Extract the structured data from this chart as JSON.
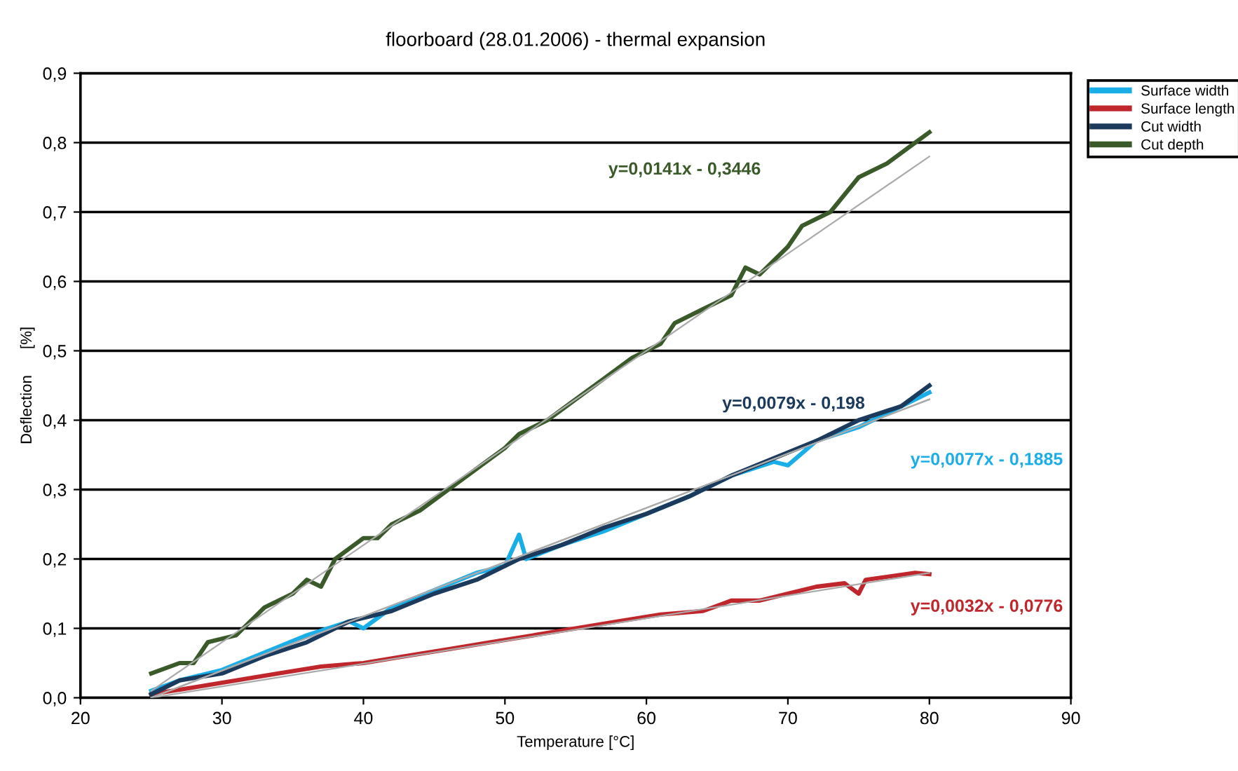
{
  "chart_data": {
    "type": "line",
    "title": "floorboard (28.01.2006) - thermal expansion",
    "xlabel": "Temperature [°C]",
    "ylabel": "Deflection      [%]",
    "series": [
      {
        "name": "Surface width",
        "color": "#1aaee8",
        "x": [
          25,
          27,
          30,
          33,
          36,
          39,
          40,
          42,
          45,
          48,
          50,
          51,
          51.5,
          54,
          57,
          60,
          63,
          66,
          69,
          70,
          72,
          75,
          78,
          80
        ],
        "values": [
          0.01,
          0.025,
          0.04,
          0.065,
          0.09,
          0.11,
          0.1,
          0.13,
          0.155,
          0.18,
          0.19,
          0.235,
          0.2,
          0.22,
          0.24,
          0.265,
          0.29,
          0.32,
          0.34,
          0.335,
          0.37,
          0.39,
          0.42,
          0.44
        ]
      },
      {
        "name": "Surface length",
        "color": "#c0272d",
        "x": [
          25,
          28,
          31,
          34,
          37,
          40,
          43,
          46,
          49,
          52,
          55,
          58,
          61,
          64,
          66,
          68,
          70,
          72,
          74,
          75,
          75.5,
          79,
          80
        ],
        "values": [
          0.005,
          0.015,
          0.025,
          0.035,
          0.045,
          0.05,
          0.06,
          0.07,
          0.08,
          0.09,
          0.1,
          0.11,
          0.12,
          0.125,
          0.14,
          0.14,
          0.15,
          0.16,
          0.165,
          0.15,
          0.17,
          0.18,
          0.178
        ]
      },
      {
        "name": "Cut width",
        "color": "#1b3a5c",
        "x": [
          25,
          27,
          30,
          33,
          36,
          39,
          42,
          45,
          48,
          51,
          54,
          57,
          60,
          63,
          66,
          69,
          72,
          75,
          78,
          80
        ],
        "values": [
          0.005,
          0.025,
          0.035,
          0.06,
          0.08,
          0.11,
          0.125,
          0.15,
          0.17,
          0.2,
          0.22,
          0.245,
          0.265,
          0.29,
          0.32,
          0.345,
          0.37,
          0.4,
          0.42,
          0.45
        ]
      },
      {
        "name": "Cut depth",
        "color": "#3a5a2a",
        "x": [
          25,
          27,
          28,
          29,
          31,
          32,
          33,
          35,
          36,
          37,
          38,
          40,
          41,
          42,
          44,
          46,
          48,
          50,
          51,
          53,
          55,
          57,
          59,
          61,
          62,
          64,
          66,
          67,
          68,
          70,
          71,
          73,
          75,
          77,
          79,
          80
        ],
        "values": [
          0.035,
          0.05,
          0.05,
          0.08,
          0.09,
          0.11,
          0.13,
          0.15,
          0.17,
          0.16,
          0.2,
          0.23,
          0.23,
          0.25,
          0.27,
          0.3,
          0.33,
          0.36,
          0.38,
          0.4,
          0.43,
          0.46,
          0.49,
          0.51,
          0.54,
          0.56,
          0.58,
          0.62,
          0.61,
          0.65,
          0.68,
          0.7,
          0.75,
          0.77,
          0.8,
          0.815
        ]
      },
      {
        "type": "line",
        "color": "#aaaaaa",
        "x": [
          25,
          80
        ],
        "values": [
          0.0,
          0.43
        ]
      },
      {
        "type": "line",
        "color": "#aaaaaa",
        "x": [
          25,
          80
        ],
        "values": [
          0.0,
          0.18
        ]
      },
      {
        "type": "line",
        "color": "#aaaaaa",
        "x": [
          25,
          80
        ],
        "values": [
          0.0,
          0.43
        ]
      },
      {
        "type": "line",
        "color": "#aaaaaa",
        "x": [
          25,
          80
        ],
        "values": [
          0.01,
          0.78
        ]
      }
    ],
    "annotations": [
      "y=0,0077x - 0,1885",
      "y=0,0032x - 0,0776",
      "y=0,0079x - 0,198",
      "y=0,0141x - 0,3446"
    ],
    "xlim": [
      20,
      90
    ],
    "xticks": [
      20,
      30,
      40,
      50,
      60,
      70,
      80,
      90
    ],
    "ylim": [
      0,
      0.9
    ],
    "yticks": [
      {
        "value": 0,
        "label": "0,0"
      },
      {
        "value": 0.1,
        "label": "0,1"
      },
      {
        "value": 0.2,
        "label": "0,2"
      },
      {
        "value": 0.3,
        "label": "0,3"
      },
      {
        "value": 0.4,
        "label": "0,4"
      },
      {
        "value": 0.5,
        "label": "0,5"
      },
      {
        "value": 0.6,
        "label": "0,6"
      },
      {
        "value": 0.7,
        "label": "0,7"
      },
      {
        "value": 0.8,
        "label": "0,8"
      },
      {
        "value": 0.9,
        "label": "0,9"
      }
    ],
    "grid": "y",
    "legend": "right",
    "marker": "none",
    "line_style": "solid"
  }
}
